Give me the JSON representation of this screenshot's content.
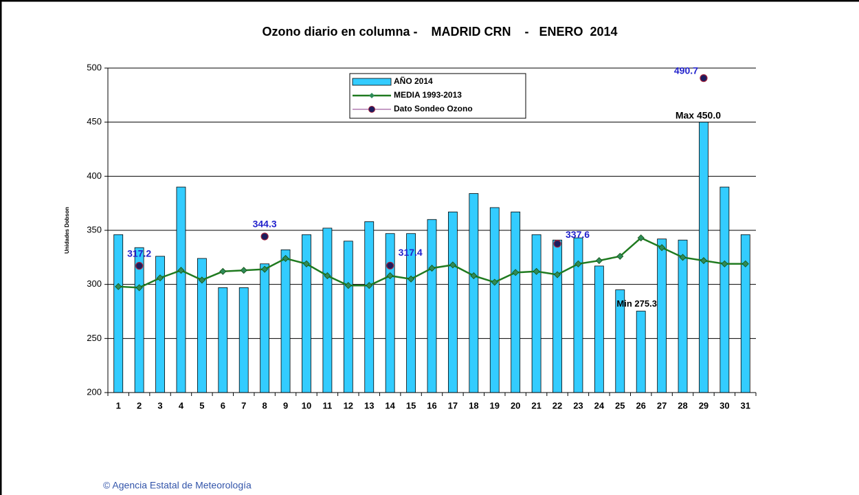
{
  "chart_data": {
    "type": "bar",
    "title": "Ozono diario en columna -    MADRID CRN    -   ENERO  2014",
    "y_label": "Unidades Dobson",
    "footer": "© Agencia Estatal de Meteorología",
    "categories": [
      "1",
      "2",
      "3",
      "4",
      "5",
      "6",
      "7",
      "8",
      "9",
      "10",
      "11",
      "12",
      "13",
      "14",
      "15",
      "16",
      "17",
      "18",
      "19",
      "20",
      "21",
      "22",
      "23",
      "24",
      "25",
      "26",
      "27",
      "28",
      "29",
      "30",
      "31"
    ],
    "series": [
      {
        "name": "AÑO 2014",
        "type": "bar",
        "color": "#33ccff",
        "values": [
          346,
          334,
          326,
          390,
          324,
          297,
          297,
          319,
          332,
          346,
          352,
          340,
          358,
          347,
          347,
          360,
          367,
          384,
          371,
          367,
          346,
          341,
          343,
          317,
          295,
          275.3,
          342,
          341,
          450,
          390,
          346
        ]
      },
      {
        "name": "MEDIA 1993-2013",
        "type": "line",
        "color": "#1f7a1f",
        "values": [
          298,
          297,
          306,
          313,
          304,
          312,
          313,
          314,
          324,
          319,
          308,
          299,
          299,
          308,
          305,
          315,
          318,
          308,
          302,
          311,
          312,
          309,
          319,
          322,
          326,
          343,
          334,
          325,
          322,
          319,
          319
        ]
      },
      {
        "name": "Dato Sondeo Ozono",
        "type": "scatter",
        "color": "#1c1c5e",
        "values": [
          null,
          317.2,
          null,
          null,
          null,
          null,
          null,
          344.3,
          null,
          null,
          null,
          null,
          null,
          317.4,
          null,
          null,
          null,
          null,
          null,
          null,
          null,
          337.6,
          null,
          null,
          null,
          null,
          null,
          null,
          490.7,
          null,
          null
        ]
      }
    ],
    "annotations": [
      "Max 450.0",
      "Min 275.3"
    ],
    "ylim": [
      200,
      500
    ],
    "yticks": [
      200,
      250,
      300,
      350,
      400,
      450,
      500
    ],
    "grid": true
  }
}
